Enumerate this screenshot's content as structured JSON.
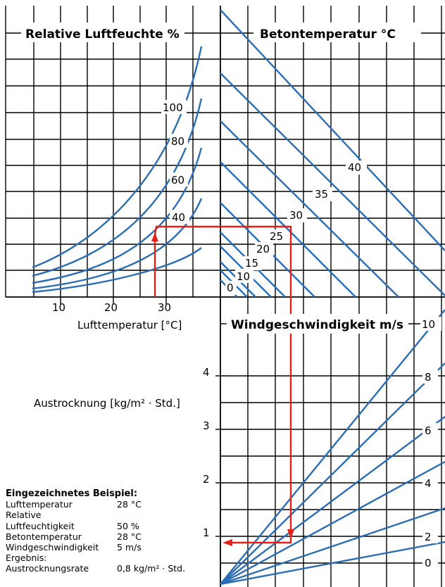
{
  "panels": {
    "humidity": {
      "title": "Relative Luftfeuchte %",
      "labels": [
        "100",
        "80",
        "60",
        "40"
      ]
    },
    "concrete": {
      "title": "Betontemperatur °C",
      "labels": [
        "40",
        "35",
        "30",
        "25",
        "20",
        "15",
        "10",
        "0"
      ]
    },
    "wind": {
      "title": "Windgeschwindigkeit m/s",
      "labels": [
        "10",
        "8",
        "6",
        "4",
        "2",
        "0"
      ]
    }
  },
  "axes": {
    "air_temp_label": "Lufttemperatur [°C]",
    "air_temp_ticks": [
      "10",
      "20",
      "30"
    ],
    "evap_label": "Austrocknung [kg/m² · Std.]",
    "evap_ticks": [
      "4",
      "3",
      "2",
      "1"
    ]
  },
  "example": {
    "heading": "Eingezeichnetes Beispiel:",
    "rows": [
      {
        "key": "Lufttemperatur",
        "value": "28 °C"
      },
      {
        "key": "Relative",
        "value": ""
      },
      {
        "key": "Luftfeuchtigkeit",
        "value": "50 %"
      },
      {
        "key": "Betontemperatur",
        "value": "28 °C"
      },
      {
        "key": "Windgeschwindigkeit",
        "value": "5 m/s"
      },
      {
        "key": "Ergebnis:",
        "value": ""
      },
      {
        "key": "Austrocknungsrate",
        "value": "0,8 kg/m² · Std."
      }
    ]
  },
  "colors": {
    "curve": "#2a6db5",
    "path": "#e32119",
    "grid": "#000000"
  }
}
